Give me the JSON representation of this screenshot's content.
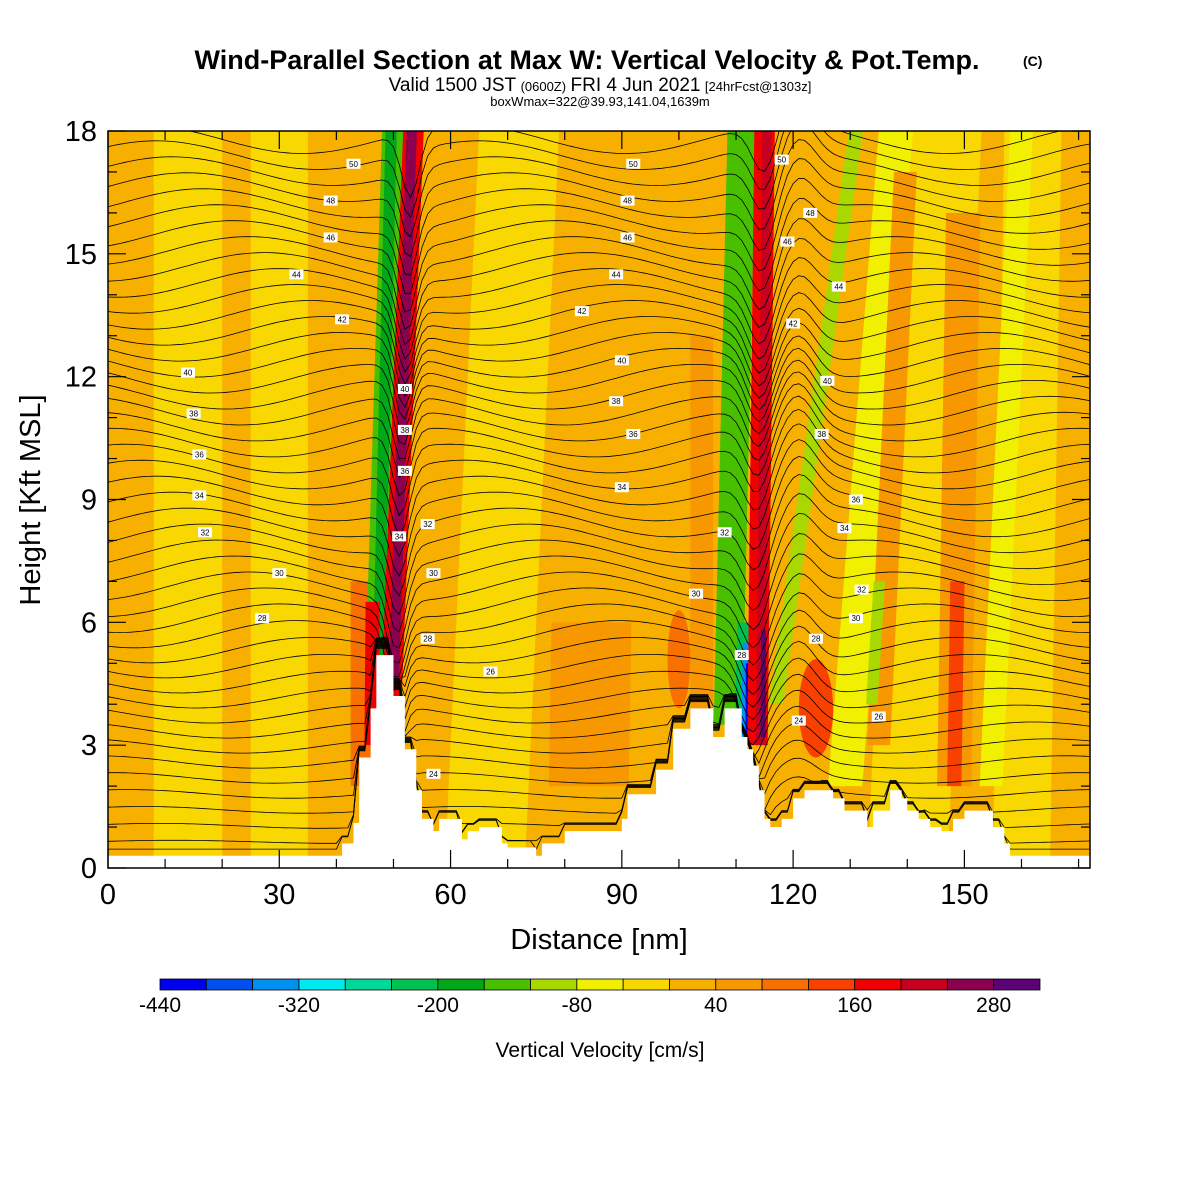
{
  "chart_data": {
    "type": "heatmap",
    "title": "Wind-Parallel Section at Max W: Vertical Velocity & Pot.Temp.",
    "title_mark": "(C)",
    "subtitle_main": "Valid 1500 JST",
    "subtitle_zulu": "(0600Z)",
    "subtitle_date": "FRI 4 Jun 2021",
    "subtitle_fcst": "[24hrFcst@1303z]",
    "subtitle_box": "boxWmax=322@39.93,141.04,1639m",
    "xlabel": "Distance [nm]",
    "ylabel": "Height [Kft MSL]",
    "xlim": [
      0,
      172
    ],
    "ylim": [
      0,
      18
    ],
    "x_ticks": [
      0,
      30,
      60,
      90,
      120,
      150
    ],
    "y_ticks": [
      0,
      3,
      6,
      9,
      12,
      15,
      18
    ],
    "colorbar": {
      "title": "Vertical Velocity [cm/s]",
      "labels": [
        "-440",
        "-320",
        "-200",
        "-80",
        "40",
        "160",
        "280"
      ],
      "colors": [
        "#0000f0",
        "#0050f0",
        "#0090f0",
        "#00e8f0",
        "#00d898",
        "#00c050",
        "#00a818",
        "#48c000",
        "#a8d800",
        "#f0f000",
        "#f8d800",
        "#f8b000",
        "#f89800",
        "#f87000",
        "#f84000",
        "#f00000",
        "#c80020",
        "#8c0050",
        "#5c0078"
      ]
    },
    "theta_labels": [
      {
        "x": 43,
        "y": 17.2,
        "text": "50"
      },
      {
        "x": 39,
        "y": 16.3,
        "text": "48"
      },
      {
        "x": 39,
        "y": 15.4,
        "text": "46"
      },
      {
        "x": 33,
        "y": 14.5,
        "text": "44"
      },
      {
        "x": 41,
        "y": 13.4,
        "text": "42"
      },
      {
        "x": 14,
        "y": 12.1,
        "text": "40"
      },
      {
        "x": 15,
        "y": 11.1,
        "text": "38"
      },
      {
        "x": 16,
        "y": 10.1,
        "text": "36"
      },
      {
        "x": 16,
        "y": 9.1,
        "text": "34"
      },
      {
        "x": 17,
        "y": 8.2,
        "text": "32"
      },
      {
        "x": 30,
        "y": 7.2,
        "text": "30"
      },
      {
        "x": 27,
        "y": 6.1,
        "text": "28"
      },
      {
        "x": 52,
        "y": 11.7,
        "text": "40"
      },
      {
        "x": 52,
        "y": 10.7,
        "text": "38"
      },
      {
        "x": 52,
        "y": 9.7,
        "text": "36"
      },
      {
        "x": 51,
        "y": 8.1,
        "text": "34"
      },
      {
        "x": 56,
        "y": 8.4,
        "text": "32"
      },
      {
        "x": 57,
        "y": 7.2,
        "text": "30"
      },
      {
        "x": 56,
        "y": 5.6,
        "text": "28"
      },
      {
        "x": 67,
        "y": 4.8,
        "text": "26"
      },
      {
        "x": 57,
        "y": 2.3,
        "text": "24"
      },
      {
        "x": 92,
        "y": 17.2,
        "text": "50"
      },
      {
        "x": 91,
        "y": 16.3,
        "text": "48"
      },
      {
        "x": 91,
        "y": 15.4,
        "text": "46"
      },
      {
        "x": 89,
        "y": 14.5,
        "text": "44"
      },
      {
        "x": 83,
        "y": 13.6,
        "text": "42"
      },
      {
        "x": 90,
        "y": 12.4,
        "text": "40"
      },
      {
        "x": 89,
        "y": 11.4,
        "text": "38"
      },
      {
        "x": 92,
        "y": 10.6,
        "text": "36"
      },
      {
        "x": 90,
        "y": 9.3,
        "text": "34"
      },
      {
        "x": 108,
        "y": 8.2,
        "text": "32"
      },
      {
        "x": 103,
        "y": 6.7,
        "text": "30"
      },
      {
        "x": 111,
        "y": 5.2,
        "text": "28"
      },
      {
        "x": 118,
        "y": 17.3,
        "text": "50"
      },
      {
        "x": 123,
        "y": 16.0,
        "text": "48"
      },
      {
        "x": 119,
        "y": 15.3,
        "text": "46"
      },
      {
        "x": 128,
        "y": 14.2,
        "text": "44"
      },
      {
        "x": 120,
        "y": 13.3,
        "text": "42"
      },
      {
        "x": 126,
        "y": 11.9,
        "text": "40"
      },
      {
        "x": 125,
        "y": 10.6,
        "text": "38"
      },
      {
        "x": 131,
        "y": 9.0,
        "text": "36"
      },
      {
        "x": 129,
        "y": 8.3,
        "text": "34"
      },
      {
        "x": 132,
        "y": 6.8,
        "text": "32"
      },
      {
        "x": 131,
        "y": 6.1,
        "text": "30"
      },
      {
        "x": 124,
        "y": 5.6,
        "text": "28"
      },
      {
        "x": 121,
        "y": 3.6,
        "text": "24"
      },
      {
        "x": 135,
        "y": 3.7,
        "text": "26"
      }
    ]
  }
}
